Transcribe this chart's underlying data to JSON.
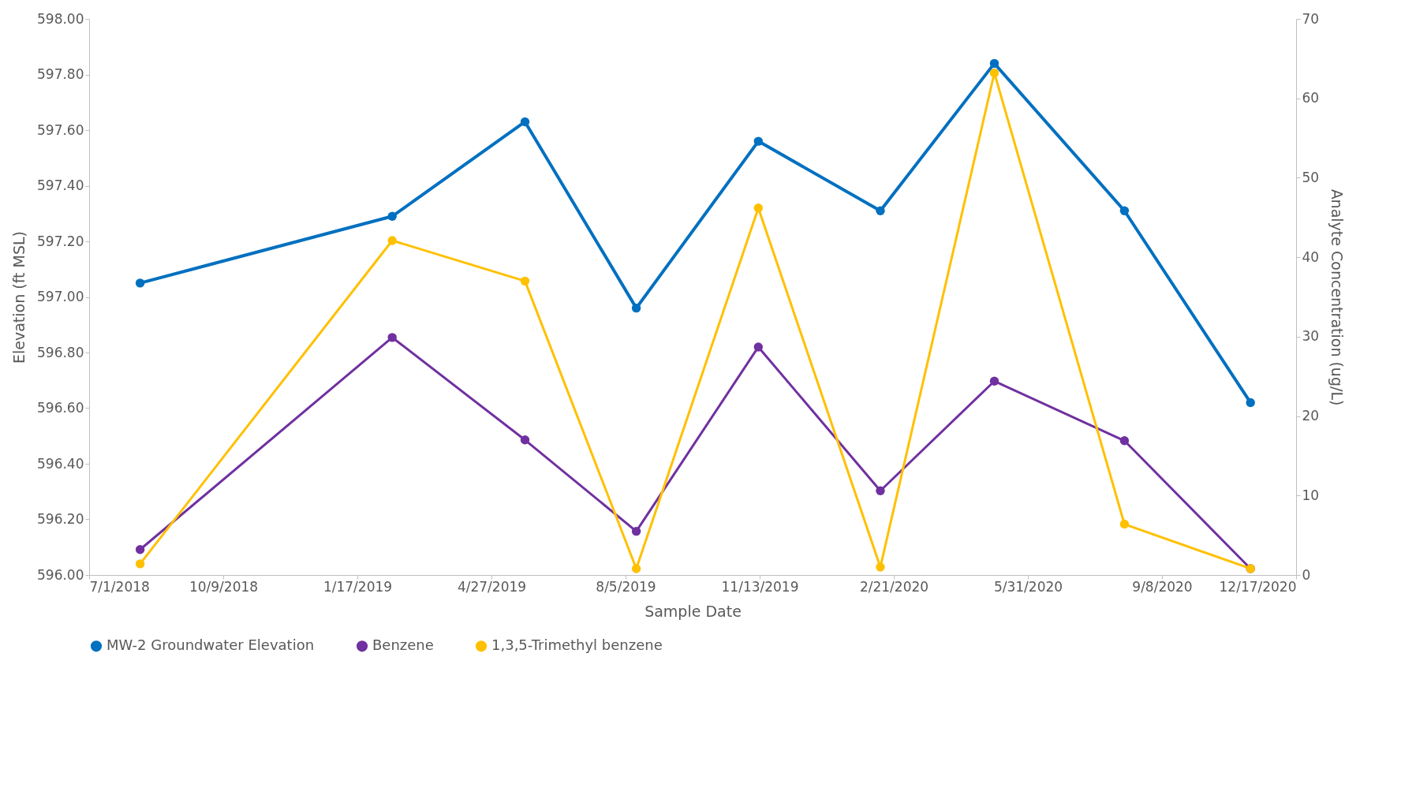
{
  "chart_data": {
    "type": "line",
    "xlabel": "Sample Date",
    "ylabel": "Elevation (ft MSL)",
    "y2label": "Analyte Concentration (ug/L)",
    "x": [
      "2018-08-08",
      "2019-02-12",
      "2019-05-22",
      "2019-08-13",
      "2019-11-12",
      "2020-02-11",
      "2020-05-06",
      "2020-08-11",
      "2020-11-13"
    ],
    "series": [
      {
        "name": "MW-2 Groundwater Elevation",
        "color": "#0070c0",
        "values": [
          597.05,
          597.29,
          597.63,
          596.96,
          597.56,
          597.31,
          597.84,
          597.31,
          596.62
        ]
      },
      {
        "name": "Benzene",
        "color": "#7030a0",
        "axis": "y2",
        "values": [
          3.2,
          29.9,
          17.0,
          5.5,
          28.7,
          10.6,
          24.4,
          16.9,
          0.8
        ]
      },
      {
        "name": "1,3,5-Trimethyl benzene",
        "color": "#ffc000",
        "axis": "y2",
        "values": [
          1.4,
          42.1,
          37.0,
          0.8,
          46.2,
          1.0,
          63.2,
          6.4,
          0.8
        ]
      }
    ],
    "xlim": [
      "2018-07-01",
      "2020-12-17"
    ],
    "xticks": [
      {
        "value": "2018-07-01",
        "label": "7/1/2018"
      },
      {
        "value": "2018-10-09",
        "label": "10/9/2018"
      },
      {
        "value": "2019-01-17",
        "label": "1/17/2019"
      },
      {
        "value": "2019-04-27",
        "label": "4/27/2019"
      },
      {
        "value": "2019-08-05",
        "label": "8/5/2019"
      },
      {
        "value": "2019-11-13",
        "label": "11/13/2019"
      },
      {
        "value": "2020-02-21",
        "label": "2/21/2020"
      },
      {
        "value": "2020-05-31",
        "label": "5/31/2020"
      },
      {
        "value": "2020-09-08",
        "label": "9/8/2020"
      },
      {
        "value": "2020-12-17",
        "label": "12/17/2020"
      }
    ],
    "ylim": [
      596,
      598
    ],
    "yticks": [
      {
        "value": 596,
        "label": "596.00"
      },
      {
        "value": 596.2,
        "label": "596.20"
      },
      {
        "value": 596.4,
        "label": "596.40"
      },
      {
        "value": 596.6,
        "label": "596.60"
      },
      {
        "value": 596.8,
        "label": "596.80"
      },
      {
        "value": 597,
        "label": "597.00"
      },
      {
        "value": 597.2,
        "label": "597.20"
      },
      {
        "value": 597.4,
        "label": "597.40"
      },
      {
        "value": 597.6,
        "label": "597.60"
      },
      {
        "value": 597.8,
        "label": "597.80"
      },
      {
        "value": 598,
        "label": "598.00"
      }
    ],
    "y2lim": [
      0,
      70
    ],
    "y2ticks": [
      0,
      10,
      20,
      30,
      40,
      50,
      60,
      70
    ],
    "legend": "bottom",
    "marker": "circle",
    "line_style": "solid",
    "grid": false
  }
}
